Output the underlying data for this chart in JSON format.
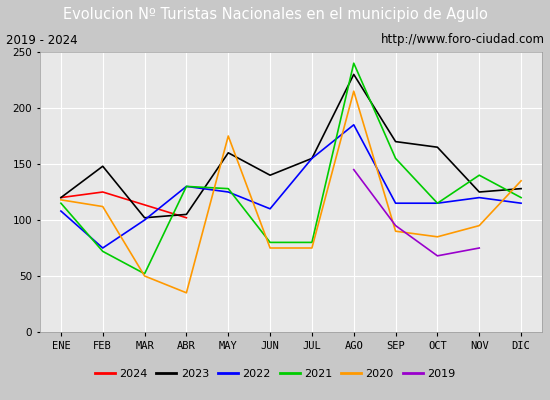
{
  "title": "Evolucion Nº Turistas Nacionales en el municipio de Agulo",
  "subtitle_left": "2019 - 2024",
  "subtitle_right": "http://www.foro-ciudad.com",
  "title_bg_color": "#4a7fc1",
  "title_text_color": "#ffffff",
  "subtitle_bg_color": "#ffffff",
  "subtitle_text_color": "#000000",
  "outer_bg_color": "#c8c8c8",
  "plot_bg_color": "#e8e8e8",
  "months": [
    "ENE",
    "FEB",
    "MAR",
    "ABR",
    "MAY",
    "JUN",
    "JUL",
    "AGO",
    "SEP",
    "OCT",
    "NOV",
    "DIC"
  ],
  "ylim": [
    0,
    250
  ],
  "yticks": [
    0,
    50,
    100,
    150,
    200,
    250
  ],
  "series": {
    "2024": {
      "color": "#ff0000",
      "data": [
        120,
        125,
        null,
        102,
        null,
        null,
        null,
        null,
        null,
        null,
        null,
        null
      ]
    },
    "2023": {
      "color": "#000000",
      "data": [
        120,
        148,
        102,
        105,
        160,
        140,
        155,
        230,
        170,
        165,
        125,
        128
      ]
    },
    "2022": {
      "color": "#0000ff",
      "data": [
        108,
        75,
        100,
        130,
        125,
        110,
        155,
        185,
        115,
        115,
        120,
        115
      ]
    },
    "2021": {
      "color": "#00cc00",
      "data": [
        115,
        72,
        52,
        130,
        128,
        80,
        80,
        240,
        155,
        115,
        140,
        120
      ]
    },
    "2020": {
      "color": "#ff9900",
      "data": [
        118,
        112,
        50,
        35,
        175,
        75,
        75,
        215,
        90,
        85,
        95,
        135
      ]
    },
    "2019": {
      "color": "#9900cc",
      "data": [
        null,
        null,
        null,
        null,
        null,
        null,
        null,
        145,
        95,
        68,
        75,
        null
      ]
    }
  },
  "legend_order": [
    "2024",
    "2023",
    "2022",
    "2021",
    "2020",
    "2019"
  ],
  "title_fontsize": 10.5,
  "subtitle_fontsize": 8.5,
  "tick_fontsize": 7.5,
  "legend_fontsize": 8
}
